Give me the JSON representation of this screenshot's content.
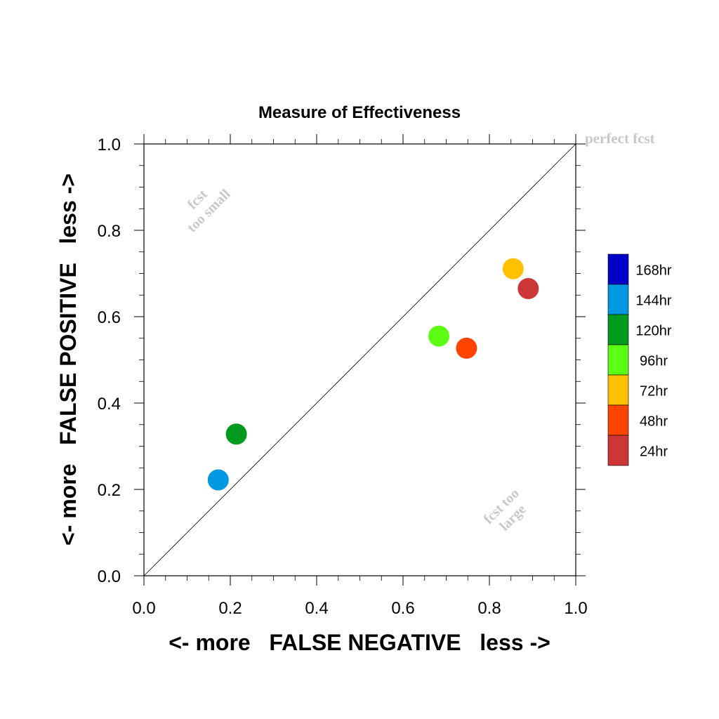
{
  "chart_data": {
    "type": "scatter",
    "title": "Measure of Effectiveness",
    "xlabel": "<- more   FALSE NEGATIVE   less ->",
    "ylabel": "<- more   FALSE POSITIVE   less ->",
    "xlim": [
      0.0,
      1.0
    ],
    "ylim": [
      0.0,
      1.0
    ],
    "x_ticks": [
      "0.0",
      "0.2",
      "0.4",
      "0.6",
      "0.8",
      "1.0"
    ],
    "y_ticks": [
      "0.0",
      "0.2",
      "0.4",
      "0.6",
      "0.8",
      "1.0"
    ],
    "grid": false,
    "legend_placement": "right",
    "annotations": {
      "perfect": "perfect fcst",
      "too_small_line1": "fcst",
      "too_small_line2": "too small",
      "too_large_line1": "fcst too",
      "too_large_line2": "large"
    },
    "legend": [
      {
        "label": "168hr",
        "color": "#0000c8"
      },
      {
        "label": "144hr",
        "color": "#0098e0"
      },
      {
        "label": "120hr",
        "color": "#009a1e"
      },
      {
        "label": "96hr",
        "color": "#5cff14"
      },
      {
        "label": "72hr",
        "color": "#ffc000"
      },
      {
        "label": "48hr",
        "color": "#ff4400"
      },
      {
        "label": "24hr",
        "color": "#cc3636"
      }
    ],
    "series": [
      {
        "name": "24hr",
        "x": 0.89,
        "y": 0.665,
        "color": "#cc3636"
      },
      {
        "name": "48hr",
        "x": 0.747,
        "y": 0.527,
        "color": "#ff4400"
      },
      {
        "name": "72hr",
        "x": 0.855,
        "y": 0.711,
        "color": "#ffc000"
      },
      {
        "name": "96hr",
        "x": 0.683,
        "y": 0.555,
        "color": "#5cff14"
      },
      {
        "name": "120hr",
        "x": 0.214,
        "y": 0.328,
        "color": "#009a1e"
      },
      {
        "name": "144hr",
        "x": 0.172,
        "y": 0.222,
        "color": "#0098e0"
      }
    ]
  }
}
